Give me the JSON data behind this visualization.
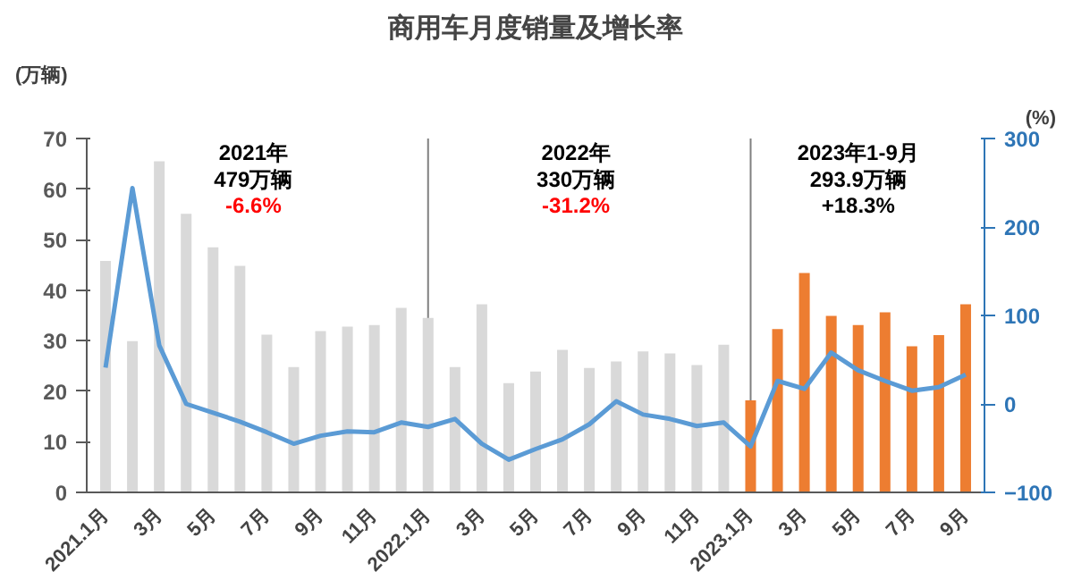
{
  "chart_data": {
    "type": "bar",
    "title": "商用车月度销量及增长率",
    "ylabel": "(万辆)",
    "y2label": "(%)",
    "categories": [
      "2021.1月",
      null,
      "3月",
      null,
      "5月",
      null,
      "7月",
      null,
      "9月",
      null,
      "11月",
      null,
      "2022.1月",
      null,
      "3月",
      null,
      "5月",
      null,
      "7月",
      null,
      "9月",
      null,
      "11月",
      null,
      "2023.1月",
      null,
      "3月",
      null,
      "5月",
      null,
      "7月",
      null,
      "9月"
    ],
    "series": [
      {
        "colors": [
          "#d9d9d9",
          "#d9d9d9",
          "#d9d9d9",
          "#d9d9d9",
          "#d9d9d9",
          "#d9d9d9",
          "#d9d9d9",
          "#d9d9d9",
          "#d9d9d9",
          "#d9d9d9",
          "#d9d9d9",
          "#d9d9d9",
          "#d9d9d9",
          "#d9d9d9",
          "#d9d9d9",
          "#d9d9d9",
          "#d9d9d9",
          "#d9d9d9",
          "#d9d9d9",
          "#d9d9d9",
          "#d9d9d9",
          "#d9d9d9",
          "#d9d9d9",
          "#d9d9d9",
          "#ed7d31",
          "#ed7d31",
          "#ed7d31",
          "#ed7d31",
          "#ed7d31",
          "#ed7d31",
          "#ed7d31",
          "#ed7d31",
          "#ed7d31"
        ],
        "values": [
          45.8,
          29.9,
          65.5,
          55.1,
          48.5,
          44.8,
          31.2,
          24.8,
          31.9,
          32.8,
          33.1,
          36.5,
          34.5,
          24.8,
          37.2,
          21.6,
          23.9,
          28.2,
          24.6,
          25.9,
          27.9,
          27.5,
          25.2,
          29.2,
          18.2,
          32.3,
          43.4,
          34.9,
          33.1,
          35.6,
          28.9,
          31.1,
          37.2
        ]
      },
      {
        "type": "line",
        "axis": "y2",
        "color": "#5b9bd5",
        "values": [
          41,
          244,
          66,
          0,
          -10,
          -20,
          -32,
          -45,
          -36,
          -31,
          -32,
          -21,
          -26,
          -17,
          -45,
          -63,
          -51,
          -40,
          -23,
          3,
          -12,
          -17,
          -25,
          -21,
          -48,
          26,
          17,
          58,
          38,
          26,
          15,
          19,
          33
        ]
      }
    ],
    "ylim": [
      0,
      70
    ],
    "yticks": [
      0,
      10,
      20,
      30,
      40,
      50,
      60,
      70
    ],
    "y2lim": [
      -100,
      300
    ],
    "y2ticks": [
      -100,
      0,
      100,
      200,
      300
    ],
    "ref_lines": [
      {
        "axis": "x",
        "value": "2022.1月",
        "color": "#808080"
      },
      {
        "axis": "x",
        "value": "2023.1月",
        "color": "#808080"
      }
    ],
    "annotations": [
      "2021年",
      "479万辆",
      "-6.6%",
      "2022年",
      "330万辆",
      "-31.2%",
      "2023年1-9月",
      "293.9万辆",
      "+18.3%"
    ],
    "grid": false,
    "marker": "none",
    "line_style": "solid"
  }
}
